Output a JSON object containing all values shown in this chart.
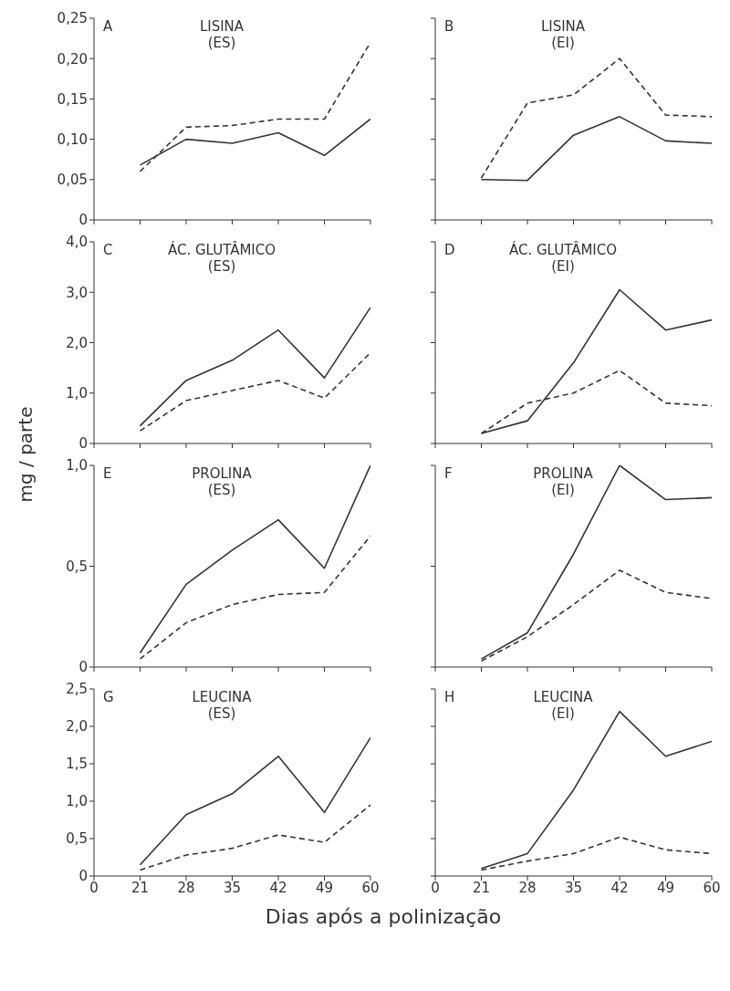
{
  "chart_data": [
    {
      "type": "line",
      "title": "LISINA",
      "subtitle": "(ES)",
      "annotations": [
        "A"
      ],
      "categories": [
        "0",
        "21",
        "28",
        "35",
        "42",
        "49",
        "60"
      ],
      "ylim": [
        0,
        0.25
      ],
      "yticks": [
        0,
        {
          "value": 0.05,
          "label": "0,05"
        },
        {
          "value": 0.1,
          "label": "0,10"
        },
        {
          "value": 0.15,
          "label": "0,15"
        },
        {
          "value": 0.2,
          "label": "0,20"
        },
        {
          "value": 0.25,
          "label": "0,25"
        }
      ],
      "tick_labels": "y",
      "grid": false,
      "series": [
        {
          "color": "#333333",
          "line_style": "solid",
          "values": [
            null,
            0.068,
            0.1,
            0.095,
            0.108,
            0.08,
            0.125
          ]
        },
        {
          "color": "#333333",
          "line_style": "dashed",
          "values": [
            null,
            0.06,
            0.115,
            0.117,
            0.125,
            0.125,
            0.22
          ]
        }
      ]
    },
    {
      "type": "line",
      "title": "LISINA",
      "subtitle": "(EI)",
      "annotations": [
        "B"
      ],
      "categories": [
        "0",
        "21",
        "28",
        "35",
        "42",
        "49",
        "60"
      ],
      "ylim": [
        0,
        0.25
      ],
      "yticks": [
        0,
        0.05,
        0.1,
        0.15,
        0.2,
        0.25
      ],
      "tick_labels": false,
      "grid": false,
      "series": [
        {
          "color": "#333333",
          "line_style": "solid",
          "values": [
            null,
            0.05,
            0.049,
            0.105,
            0.128,
            0.098,
            0.095
          ]
        },
        {
          "color": "#333333",
          "line_style": "dashed",
          "values": [
            null,
            0.052,
            0.145,
            0.155,
            0.2,
            0.13,
            0.128
          ]
        }
      ]
    },
    {
      "type": "line",
      "title": "ÁC. GLUTÂMICO",
      "subtitle": "(ES)",
      "ylabel": "mg / parte",
      "annotations": [
        "C"
      ],
      "categories": [
        "0",
        "21",
        "28",
        "35",
        "42",
        "49",
        "60"
      ],
      "ylim": [
        0,
        4
      ],
      "yticks": [
        0,
        {
          "value": 1,
          "label": "1,0"
        },
        {
          "value": 2,
          "label": "2,0"
        },
        {
          "value": 3,
          "label": "3,0"
        },
        {
          "value": 4,
          "label": "4,0"
        }
      ],
      "tick_labels": "y",
      "grid": false,
      "series": [
        {
          "color": "#333333",
          "line_style": "solid",
          "values": [
            null,
            0.35,
            1.25,
            1.65,
            2.25,
            1.3,
            2.7
          ]
        },
        {
          "color": "#333333",
          "line_style": "dashed",
          "values": [
            null,
            0.25,
            0.85,
            1.05,
            1.25,
            0.9,
            1.8
          ]
        }
      ]
    },
    {
      "type": "line",
      "title": "ÁC. GLUTÂMICO",
      "subtitle": "(EI)",
      "annotations": [
        "D"
      ],
      "categories": [
        "0",
        "21",
        "28",
        "35",
        "42",
        "49",
        "60"
      ],
      "ylim": [
        0,
        4
      ],
      "yticks": [
        0,
        1,
        2,
        3,
        4
      ],
      "tick_labels": false,
      "grid": false,
      "series": [
        {
          "color": "#333333",
          "line_style": "solid",
          "values": [
            null,
            0.2,
            0.45,
            1.6,
            3.05,
            2.25,
            2.45
          ]
        },
        {
          "color": "#333333",
          "line_style": "dashed",
          "values": [
            null,
            0.2,
            0.8,
            1.0,
            1.45,
            0.8,
            0.75
          ]
        }
      ]
    },
    {
      "type": "line",
      "title": "PROLINA",
      "subtitle": "(ES)",
      "annotations": [
        "E"
      ],
      "categories": [
        "0",
        "21",
        "28",
        "35",
        "42",
        "49",
        "60"
      ],
      "ylim": [
        0,
        1
      ],
      "yticks": [
        0,
        {
          "value": 0.5,
          "label": "0,5"
        },
        {
          "value": 1,
          "label": "1,0"
        }
      ],
      "tick_labels": "y",
      "grid": false,
      "series": [
        {
          "color": "#333333",
          "line_style": "solid",
          "values": [
            null,
            0.07,
            0.41,
            0.58,
            0.73,
            0.49,
            1.0
          ]
        },
        {
          "color": "#333333",
          "line_style": "dashed",
          "values": [
            null,
            0.04,
            0.22,
            0.31,
            0.36,
            0.37,
            0.65
          ]
        }
      ]
    },
    {
      "type": "line",
      "title": "PROLINA",
      "subtitle": "(EI)",
      "annotations": [
        "F"
      ],
      "categories": [
        "0",
        "21",
        "28",
        "35",
        "42",
        "49",
        "60"
      ],
      "ylim": [
        0,
        1
      ],
      "yticks": [
        0,
        0.5,
        1
      ],
      "tick_labels": false,
      "grid": false,
      "series": [
        {
          "color": "#333333",
          "line_style": "solid",
          "values": [
            null,
            0.04,
            0.17,
            0.56,
            1.0,
            0.83,
            0.84
          ]
        },
        {
          "color": "#333333",
          "line_style": "dashed",
          "values": [
            null,
            0.03,
            0.15,
            0.31,
            0.48,
            0.37,
            0.34
          ]
        }
      ]
    },
    {
      "type": "line",
      "title": "LEUCINA",
      "subtitle": "(ES)",
      "xlabel": "Dias após a polinização",
      "annotations": [
        "G"
      ],
      "categories": [
        "0",
        "21",
        "28",
        "35",
        "42",
        "49",
        "60"
      ],
      "ylim": [
        0,
        2.5
      ],
      "yticks": [
        0,
        {
          "value": 0.5,
          "label": "0,5"
        },
        {
          "value": 1,
          "label": "1,0"
        },
        {
          "value": 1.5,
          "label": "1,5"
        },
        {
          "value": 2,
          "label": "2,0"
        },
        {
          "value": 2.5,
          "label": "2,5"
        }
      ],
      "grid": false,
      "series": [
        {
          "color": "#333333",
          "line_style": "solid",
          "values": [
            null,
            0.15,
            0.82,
            1.1,
            1.6,
            0.85,
            1.85
          ]
        },
        {
          "color": "#333333",
          "line_style": "dashed",
          "values": [
            null,
            0.08,
            0.28,
            0.37,
            0.55,
            0.45,
            0.95
          ]
        }
      ]
    },
    {
      "type": "line",
      "title": "LEUCINA",
      "subtitle": "(EI)",
      "annotations": [
        "H"
      ],
      "categories": [
        "0",
        "21",
        "28",
        "35",
        "42",
        "49",
        "60"
      ],
      "ylim": [
        0,
        2.5
      ],
      "yticks": [
        0,
        0.5,
        1,
        1.5,
        2,
        2.5
      ],
      "tick_labels": "x",
      "grid": false,
      "series": [
        {
          "color": "#333333",
          "line_style": "solid",
          "values": [
            null,
            0.1,
            0.3,
            1.15,
            2.2,
            1.6,
            1.8
          ]
        },
        {
          "color": "#333333",
          "line_style": "dashed",
          "values": [
            null,
            0.08,
            0.2,
            0.3,
            0.52,
            0.35,
            0.3
          ]
        }
      ]
    }
  ]
}
